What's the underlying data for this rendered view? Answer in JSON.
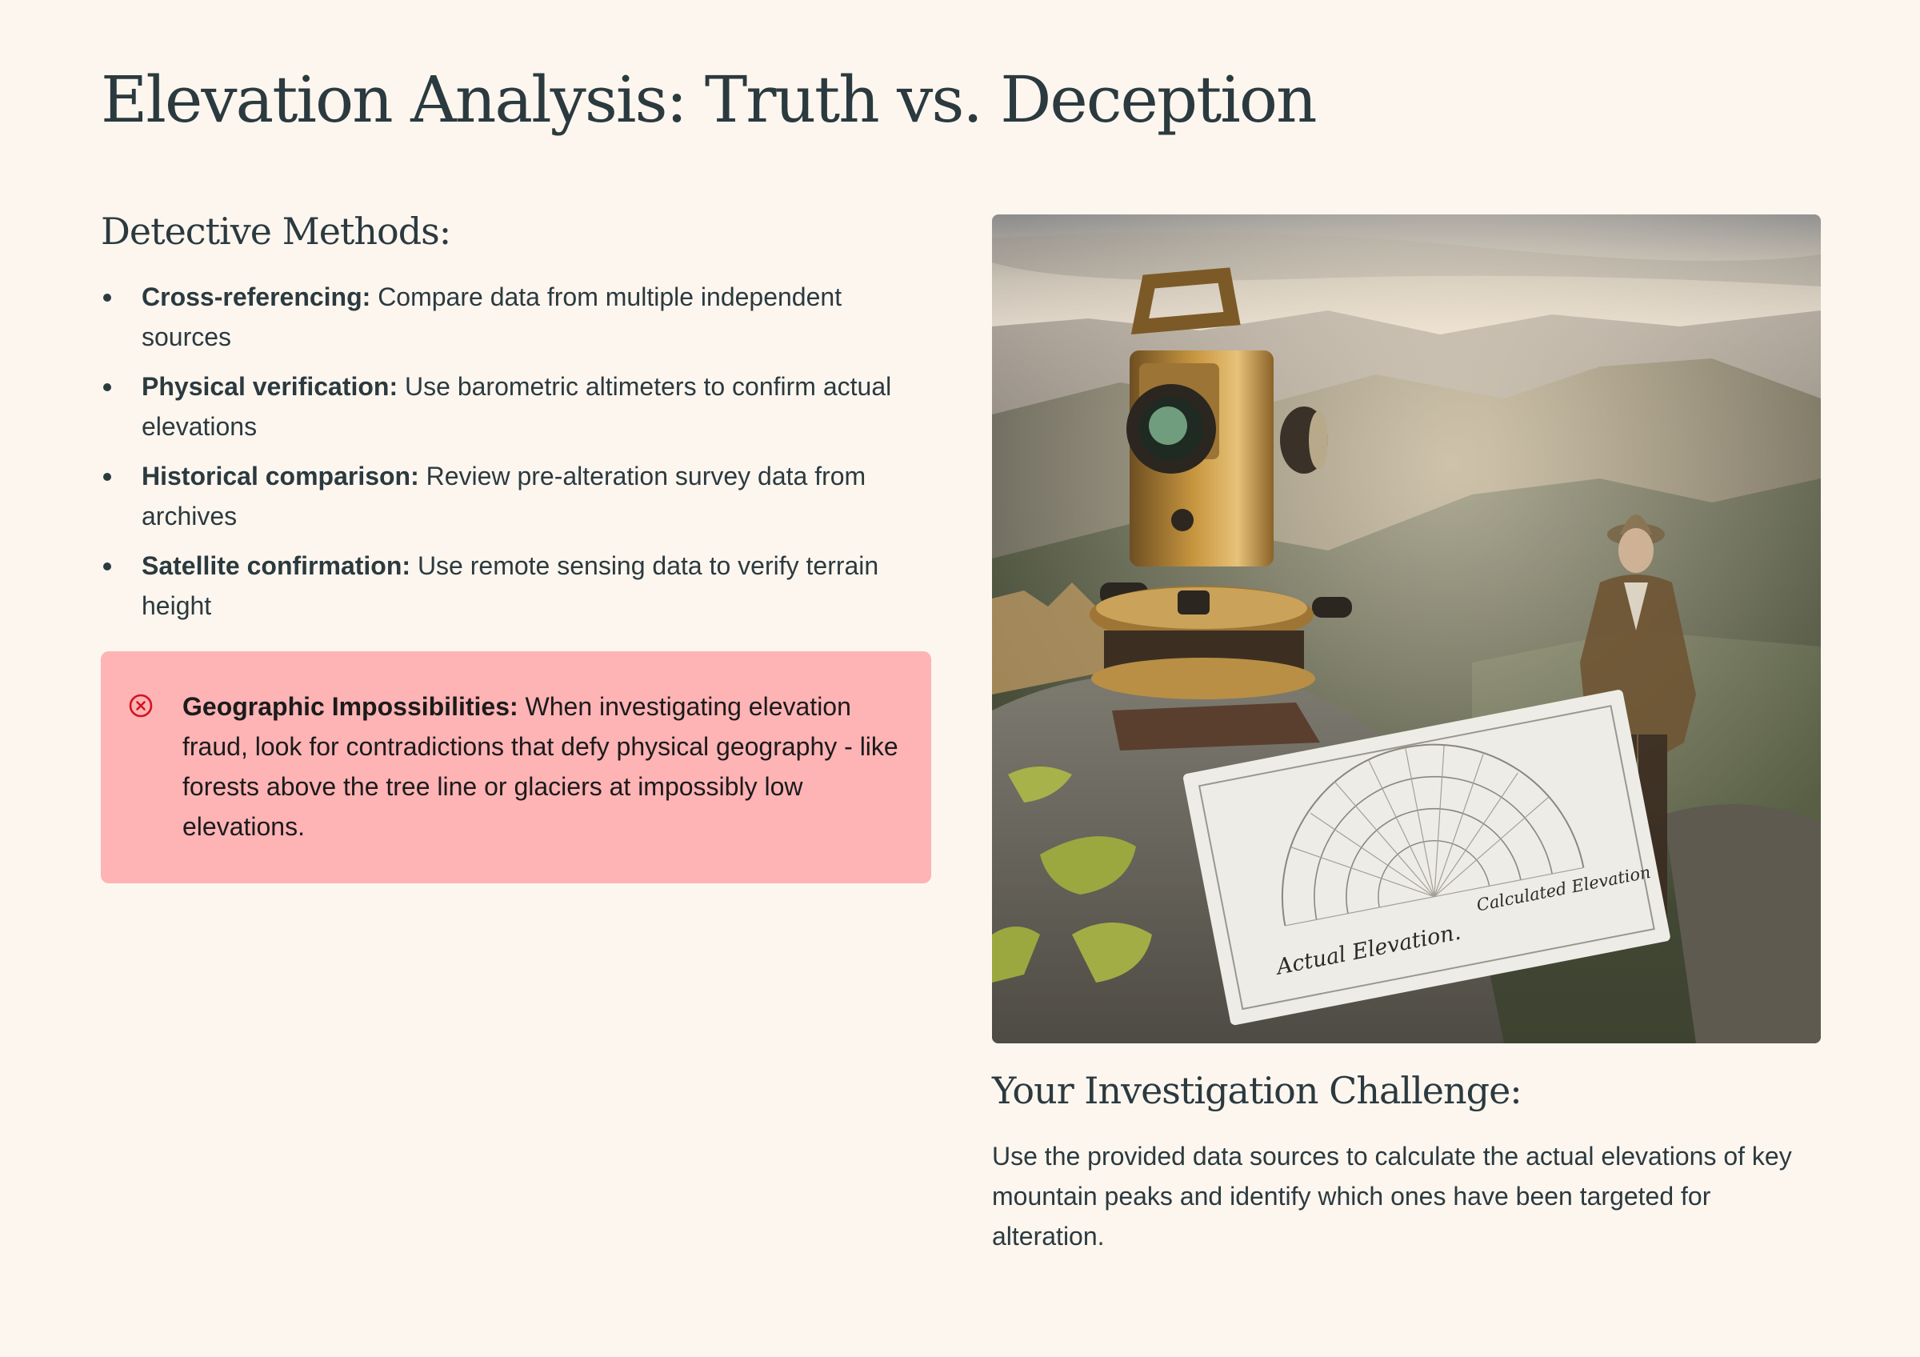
{
  "title": "Elevation Analysis: Truth vs. Deception",
  "methods": {
    "heading": "Detective Methods:",
    "items": [
      {
        "term": "Cross-referencing:",
        "text": "Compare data from multiple independent sources"
      },
      {
        "term": "Physical verification:",
        "text": "Use barometric altimeters to confirm actual elevations"
      },
      {
        "term": "Historical comparison:",
        "text": "Review pre-alteration survey data from archives"
      },
      {
        "term": "Satellite confirmation:",
        "text": "Use remote sensing data to verify terrain height"
      }
    ]
  },
  "alert": {
    "icon": "error-circle-x-icon",
    "term": "Geographic Impossibilities:",
    "text": "When investigating elevation fraud, look for contradictions that defy physical geography - like forests above the tree line or glaciers at impossibly low elevations."
  },
  "image": {
    "card_left_text": "Actual Elevation.",
    "card_right_text": "Calculated Elevation"
  },
  "challenge": {
    "heading": "Your Investigation Challenge:",
    "text": "Use the provided data sources to calculate the actual elevations of key mountain peaks and identify which ones have been targeted for alteration."
  },
  "colors": {
    "background": "#fdf6ef",
    "text": "#2b3a3f",
    "alert_background": "#feb3b5",
    "alert_icon": "#d2141f"
  }
}
